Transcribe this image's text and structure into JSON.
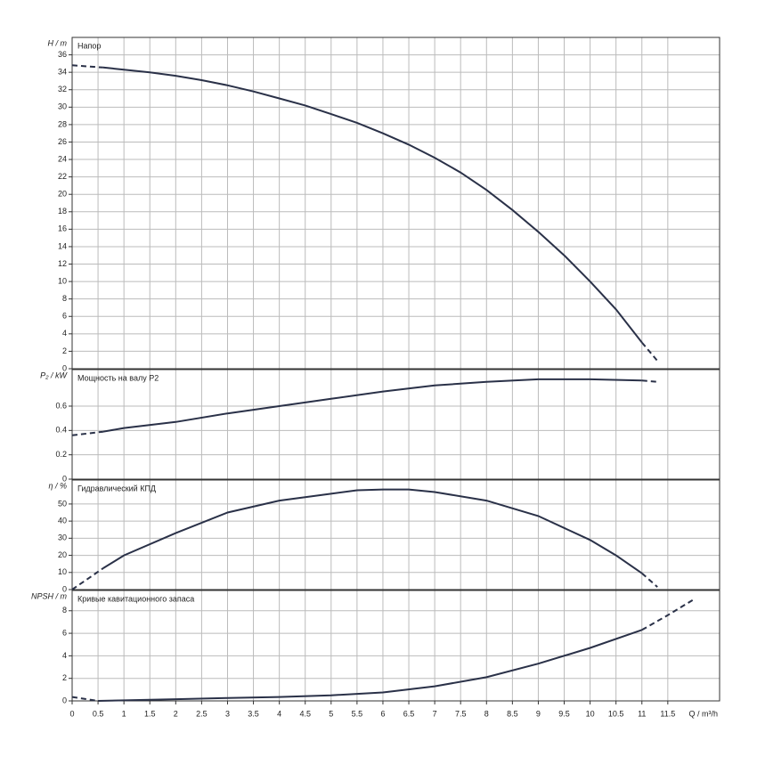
{
  "chart_data": [
    {
      "type": "line",
      "y_label": "H / m",
      "title": "Напор",
      "ylim": [
        0,
        38
      ],
      "yticks": [
        0,
        2,
        4,
        6,
        8,
        10,
        12,
        14,
        16,
        18,
        20,
        22,
        24,
        26,
        28,
        30,
        32,
        34,
        36
      ],
      "segments": [
        {
          "style": "dashed",
          "x": [
            0,
            0.6
          ],
          "values": [
            34.8,
            34.55
          ]
        },
        {
          "style": "solid",
          "x": [
            0.6,
            1,
            1.5,
            2,
            2.5,
            3,
            3.5,
            4,
            4.5,
            5,
            5.5,
            6,
            6.5,
            7,
            7.5,
            8,
            8.5,
            9,
            9.5,
            10,
            10.5,
            11
          ],
          "values": [
            34.55,
            34.3,
            34.0,
            33.6,
            33.1,
            32.5,
            31.8,
            31.0,
            30.2,
            29.2,
            28.2,
            27.0,
            25.7,
            24.2,
            22.5,
            20.5,
            18.2,
            15.7,
            13.0,
            10.0,
            6.8,
            3.0
          ]
        },
        {
          "style": "dashed",
          "x": [
            11,
            11.3
          ],
          "values": [
            3.0,
            0.9
          ]
        }
      ]
    },
    {
      "type": "line",
      "y_label": "P₂ / kW",
      "title": "Мощность на валу P2",
      "ylim": [
        0,
        0.9
      ],
      "yticks": [
        0,
        0.2,
        0.4,
        0.6
      ],
      "segments": [
        {
          "style": "dashed",
          "x": [
            0,
            0.6
          ],
          "values": [
            0.36,
            0.39
          ]
        },
        {
          "style": "solid",
          "x": [
            0.6,
            1,
            2,
            3,
            4,
            5,
            6,
            7,
            8,
            9,
            10,
            11
          ],
          "values": [
            0.39,
            0.42,
            0.47,
            0.54,
            0.6,
            0.66,
            0.72,
            0.77,
            0.8,
            0.82,
            0.82,
            0.81
          ]
        },
        {
          "style": "dashed",
          "x": [
            11,
            11.3
          ],
          "values": [
            0.81,
            0.8
          ]
        }
      ]
    },
    {
      "type": "line",
      "y_label": "η / %",
      "title": "Гидравлический КПД",
      "ylim": [
        0,
        64
      ],
      "yticks": [
        0,
        10,
        20,
        30,
        40,
        50
      ],
      "segments": [
        {
          "style": "dashed",
          "x": [
            0,
            0.6
          ],
          "values": [
            0,
            12.5
          ]
        },
        {
          "style": "solid",
          "x": [
            0.6,
            1,
            2,
            3,
            4,
            5,
            5.5,
            6,
            6.5,
            7,
            8,
            9,
            10,
            10.5,
            11
          ],
          "values": [
            12.5,
            20,
            33,
            45,
            52,
            56,
            58,
            58.5,
            58.5,
            57,
            52,
            43,
            29,
            20,
            9.5
          ]
        },
        {
          "style": "dashed",
          "x": [
            11,
            11.3
          ],
          "values": [
            9.5,
            1.5
          ]
        }
      ]
    },
    {
      "type": "line",
      "y_label": "NPSH / m",
      "title": "Кривые кавитационного запаса",
      "ylim": [
        0,
        9.8
      ],
      "yticks": [
        0,
        2,
        4,
        6,
        8
      ],
      "segments": [
        {
          "style": "dashed",
          "x": [
            0,
            0.5
          ],
          "values": [
            0.35,
            0
          ]
        },
        {
          "style": "solid",
          "x": [
            0.5,
            1,
            2,
            3,
            4,
            5,
            6,
            7,
            8,
            9,
            10,
            11
          ],
          "values": [
            0,
            0.05,
            0.15,
            0.25,
            0.35,
            0.5,
            0.75,
            1.3,
            2.1,
            3.3,
            4.7,
            6.3
          ]
        },
        {
          "style": "dashed",
          "x": [
            11,
            11.5,
            12
          ],
          "values": [
            6.3,
            7.6,
            9.0
          ]
        }
      ],
      "x_label": "Q / m³/h",
      "xlim": [
        0,
        12.5
      ],
      "xticks": [
        0,
        0.5,
        1,
        1.5,
        2,
        2.5,
        3,
        3.5,
        4,
        4.5,
        5,
        5.5,
        6,
        6.5,
        7,
        7.5,
        8,
        8.5,
        9,
        9.5,
        10,
        10.5,
        11,
        11.5
      ]
    }
  ]
}
